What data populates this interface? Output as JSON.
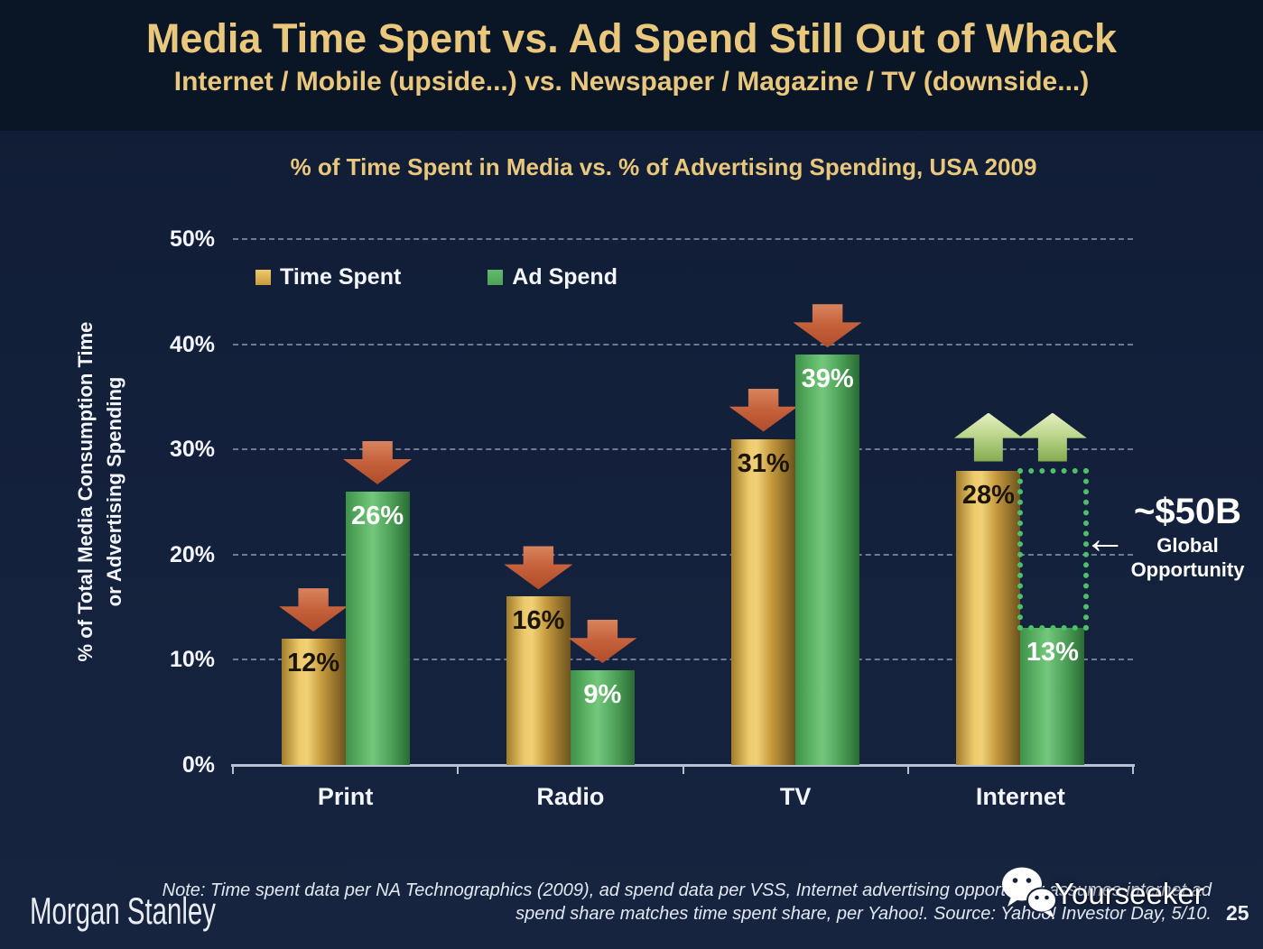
{
  "header": {
    "title": "Media Time Spent vs. Ad Spend Still Out of Whack",
    "subtitle": "Internet / Mobile (upside...) vs. Newspaper / Magazine / TV (downside...)"
  },
  "chart_data": {
    "type": "bar",
    "title": "% of Time Spent in Media vs. % of Advertising Spending, USA 2009",
    "categories": [
      "Print",
      "Radio",
      "TV",
      "Internet"
    ],
    "series": [
      {
        "name": "Time Spent",
        "color_key": "gold",
        "values": [
          12,
          16,
          31,
          28
        ]
      },
      {
        "name": "Ad Spend",
        "color_key": "green",
        "values": [
          26,
          9,
          39,
          13
        ]
      }
    ],
    "value_suffix": "%",
    "ylabel_line1": "% of Total Media Consumption Time",
    "ylabel_line2": "or Advertising Spending",
    "yticks": [
      0,
      10,
      20,
      30,
      40,
      50
    ],
    "ylim": [
      0,
      50
    ],
    "grid": "dashed horizontal",
    "legend_position": "top-left inside plot",
    "trend_arrows": [
      "down",
      "down",
      "down",
      "up"
    ],
    "opportunity_box": {
      "category": "Internet",
      "series": "Ad Spend",
      "from_pct": 13,
      "to_pct": 28
    }
  },
  "annotation": {
    "value": "~$50B",
    "line1": "Global",
    "line2": "Opportunity"
  },
  "icons": {
    "left_arrow_glyph": "←",
    "wechat_icon": "wechat-chat-bubbles"
  },
  "footer": {
    "brand": "Morgan Stanley",
    "note_line1": "Note: Time spent data per NA Technographics (2009), ad spend data per VSS, Internet advertising opportunity assumes internet ad",
    "note_line2": "spend share matches time spent share, per Yahoo!. Source: Yahoo! Investor Day, 5/10.",
    "page_number": "25"
  },
  "watermark": {
    "text": "Yourseeker"
  },
  "colors": {
    "background_header": "#0a1525",
    "background_body": "#14213c",
    "title_gold": "#e9c87e",
    "text_white": "#f2f5fa",
    "bar_gold_light": "#eecb6c",
    "bar_gold_mid": "#c79b3e",
    "bar_gold_dark": "#6b521d",
    "bar_green_light": "#63ba6c",
    "bar_green_mid": "#4da257",
    "bar_green_dark": "#2a6b35",
    "label_on_gold": "#1c1404",
    "label_on_green": "#ffffff",
    "arrow_down_light": "#d8845f",
    "arrow_down_dark": "#b04d2b",
    "arrow_up_light": "#e6f0c2",
    "arrow_up_dark": "#83ab50",
    "dotted_box_green": "#4fc06a",
    "gridline": "rgba(205,214,230,0.5)",
    "axis_line": "#b7c1d2"
  }
}
